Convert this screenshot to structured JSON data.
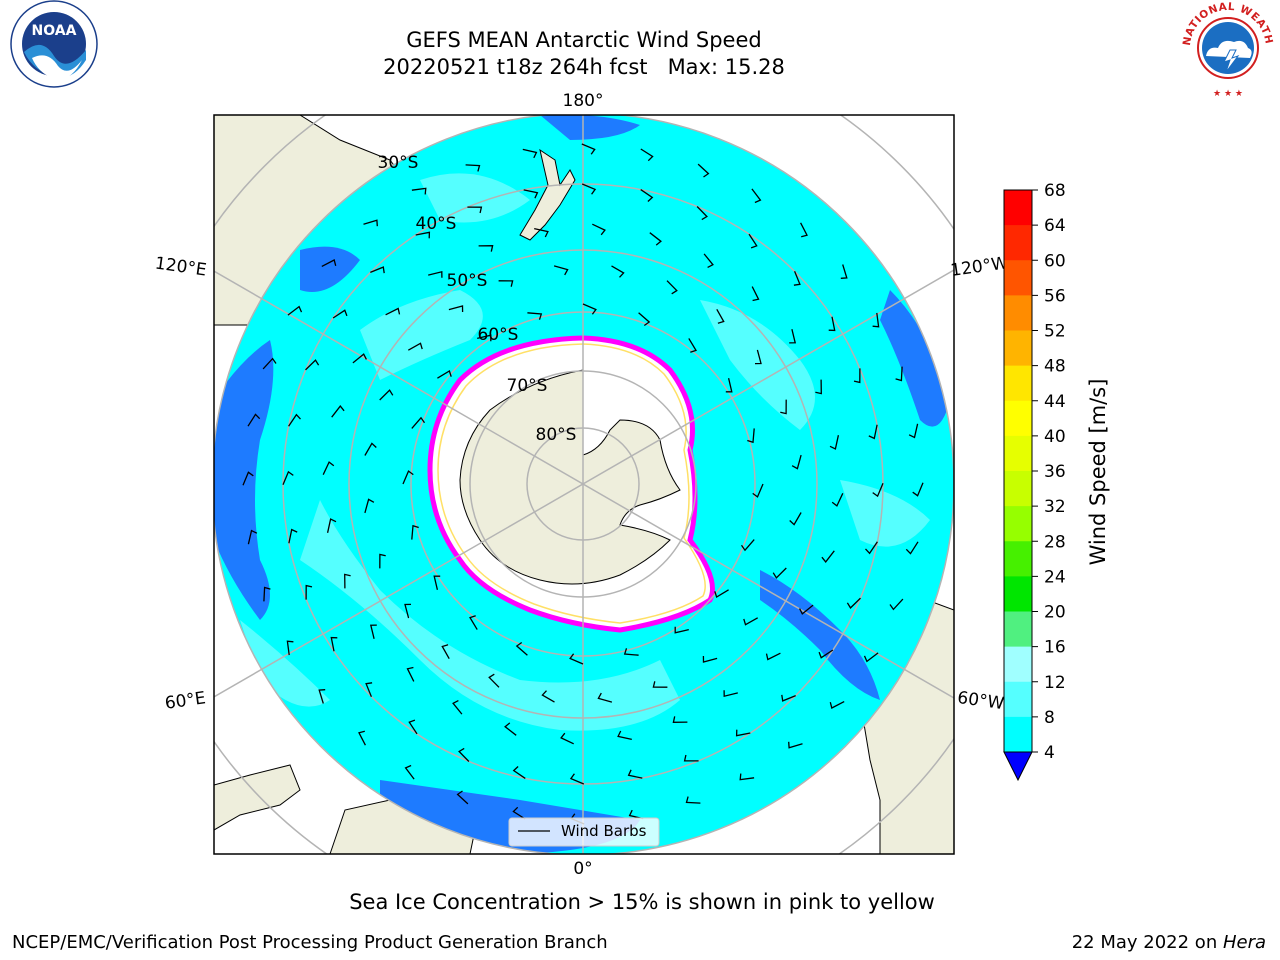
{
  "title": {
    "line1": "GEFS MEAN Antarctic Wind Speed",
    "line2": "20220521 t18z 264h fcst   Max: 15.28"
  },
  "map": {
    "projection": "south-polar-stereographic",
    "longitude_labels": {
      "top": "180°",
      "bottom": "0°",
      "upper_left": "120°E",
      "upper_right": "120°W",
      "lower_left": "60°E",
      "lower_right": "60°W"
    },
    "latitude_labels": [
      "30°S",
      "40°S",
      "50°S",
      "60°S",
      "70°S",
      "80°S"
    ],
    "legend_label": "Wind Barbs",
    "colors": {
      "land": "#eeeedc",
      "ice": "#ffffff",
      "speed_4_8": "#1e7bff",
      "speed_8_12": "#00ffff",
      "speed_12_16": "#55ffff",
      "ice_edge": "#ff00ff",
      "ice_edge_inner": "#ffe066"
    }
  },
  "colorbar": {
    "label": "Wind Speed [m/s]",
    "ticks": [
      "68",
      "64",
      "60",
      "56",
      "52",
      "48",
      "44",
      "40",
      "36",
      "32",
      "28",
      "24",
      "20",
      "16",
      "12",
      "8",
      "4"
    ],
    "colors": [
      "#ff0000",
      "#ff2800",
      "#ff5500",
      "#ff8c00",
      "#ffb400",
      "#ffe600",
      "#ffff00",
      "#e6ff00",
      "#c8ff00",
      "#96ff00",
      "#46f000",
      "#00e600",
      "#50f080",
      "#a0ffff",
      "#55ffff",
      "#00ffff",
      "#1e7bff"
    ],
    "extend_color": "#0000ff"
  },
  "note": "Sea Ice Concentration > 15% is shown in pink to yellow",
  "footer": {
    "left": "NCEP/EMC/Verification Post Processing Product Generation Branch",
    "right_prefix": "22 May 2022 on ",
    "right_machine": "Hera"
  },
  "logos": {
    "noaa_text": "NOAA",
    "nws_text": "NATIONAL WEATHER SERVICE"
  }
}
